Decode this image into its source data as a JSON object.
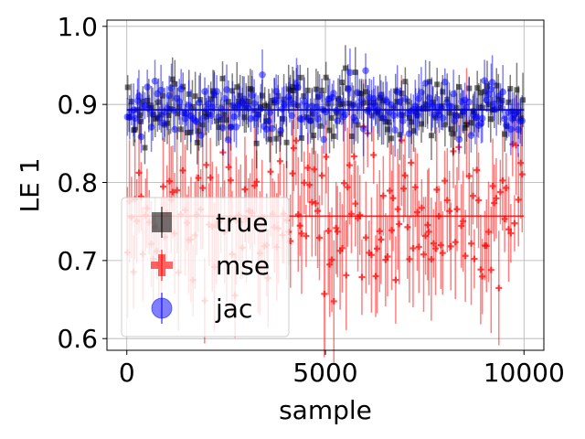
{
  "chart_data": {
    "type": "scatter",
    "xlabel": "sample",
    "ylabel": "LE 1",
    "xlim": [
      -500,
      10500
    ],
    "ylim": [
      0.585,
      1.008
    ],
    "xticks": [
      0,
      5000,
      10000
    ],
    "xtick_labels": [
      "0",
      "5000",
      "10000"
    ],
    "yticks": [
      0.6,
      0.7,
      0.8,
      0.9,
      1.0
    ],
    "ytick_labels": [
      "0.6",
      "0.7",
      "0.8",
      "0.9",
      "1.0"
    ],
    "grid": true,
    "legend_position": "lower-left",
    "series": [
      {
        "name": "true",
        "color": "#000000",
        "marker": "square",
        "mean": 0.893,
        "spread": 0.02,
        "error": 0.025,
        "count": 200,
        "x_range": [
          0,
          10000
        ]
      },
      {
        "name": "mse",
        "color": "#ff0000",
        "marker": "plus",
        "mean": 0.757,
        "spread": 0.045,
        "error": 0.06,
        "count": 200,
        "x_range": [
          0,
          10000
        ]
      },
      {
        "name": "jac",
        "color": "#0000ff",
        "marker": "circle",
        "mean": 0.893,
        "spread": 0.018,
        "error": 0.025,
        "count": 200,
        "x_range": [
          0,
          10000
        ]
      }
    ],
    "mean_lines": [
      {
        "series": "true",
        "y": 0.893
      },
      {
        "series": "mse",
        "y": 0.757
      },
      {
        "series": "jac",
        "y": 0.893
      }
    ]
  }
}
